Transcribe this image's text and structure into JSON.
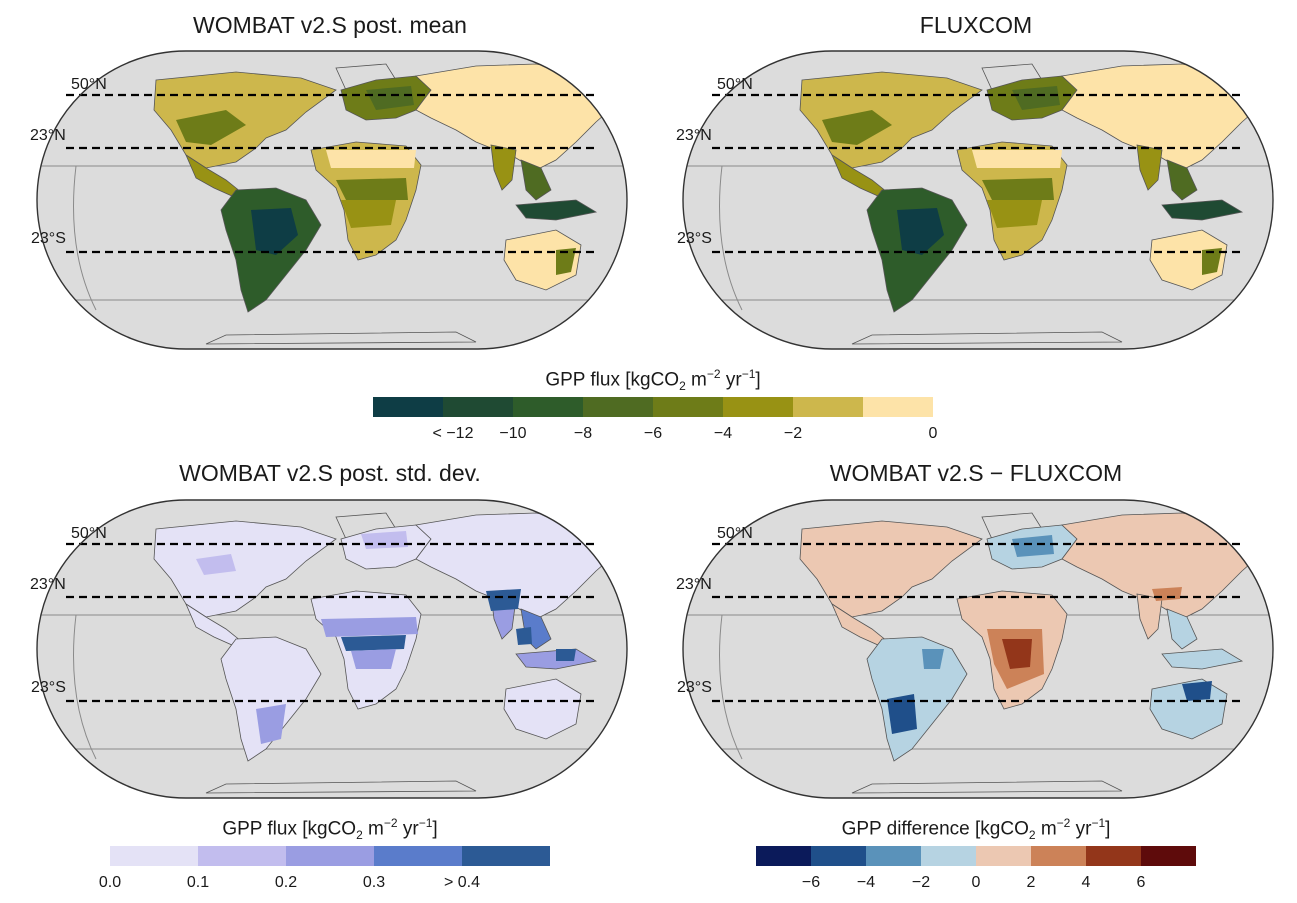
{
  "panels": [
    {
      "title": "WOMBAT v2.S post. mean",
      "scheme": "mean"
    },
    {
      "title": "FLUXCOM",
      "scheme": "mean"
    },
    {
      "title": "WOMBAT v2.S post. std. dev.",
      "scheme": "sd"
    },
    {
      "title": "WOMBAT v2.S − FLUXCOM",
      "scheme": "diff"
    }
  ],
  "lat_labels": [
    "50°N",
    "23°N",
    "23°S"
  ],
  "legends": {
    "mean": {
      "title_pre": "GPP flux [kgCO",
      "title_sub": "2",
      "title_mid": " m",
      "title_sup1": "−2",
      "title_mid2": " yr",
      "title_sup2": "−1",
      "title_post": "]",
      "colors": [
        "#0e3d45",
        "#1f4a33",
        "#2e5c2a",
        "#4f6b22",
        "#6e7c18",
        "#989214",
        "#cdb74c",
        "#fde3a8"
      ],
      "ticks": [
        "< −12",
        "−10",
        "−8",
        "−6",
        "−4",
        "−2",
        "0"
      ]
    },
    "sd": {
      "title_pre": "GPP flux [kgCO",
      "title_sub": "2",
      "title_mid": " m",
      "title_sup1": "−2",
      "title_mid2": " yr",
      "title_sup2": "−1",
      "title_post": "]",
      "colors": [
        "#e4e2f6",
        "#c2bdee",
        "#9a9de2",
        "#5a7ccb",
        "#2c5a95"
      ],
      "ticks": [
        "0.0",
        "0.1",
        "0.2",
        "0.3",
        "> 0.4"
      ]
    },
    "diff": {
      "title_pre": "GPP difference [kgCO",
      "title_sub": "2",
      "title_mid": " m",
      "title_sup1": "−2",
      "title_mid2": " yr",
      "title_sup2": "−1",
      "title_post": "]",
      "colors": [
        "#0b1a5a",
        "#1f4f8a",
        "#5a92ba",
        "#b6d3e2",
        "#ecc8b2",
        "#cc8258",
        "#93361a",
        "#5e0b0b"
      ],
      "ticks": [
        "−6",
        "−4",
        "−2",
        "0",
        "2",
        "4",
        "6"
      ]
    }
  },
  "colors": {
    "ocean": "#dcdcdc",
    "land_outline": "#555555"
  }
}
